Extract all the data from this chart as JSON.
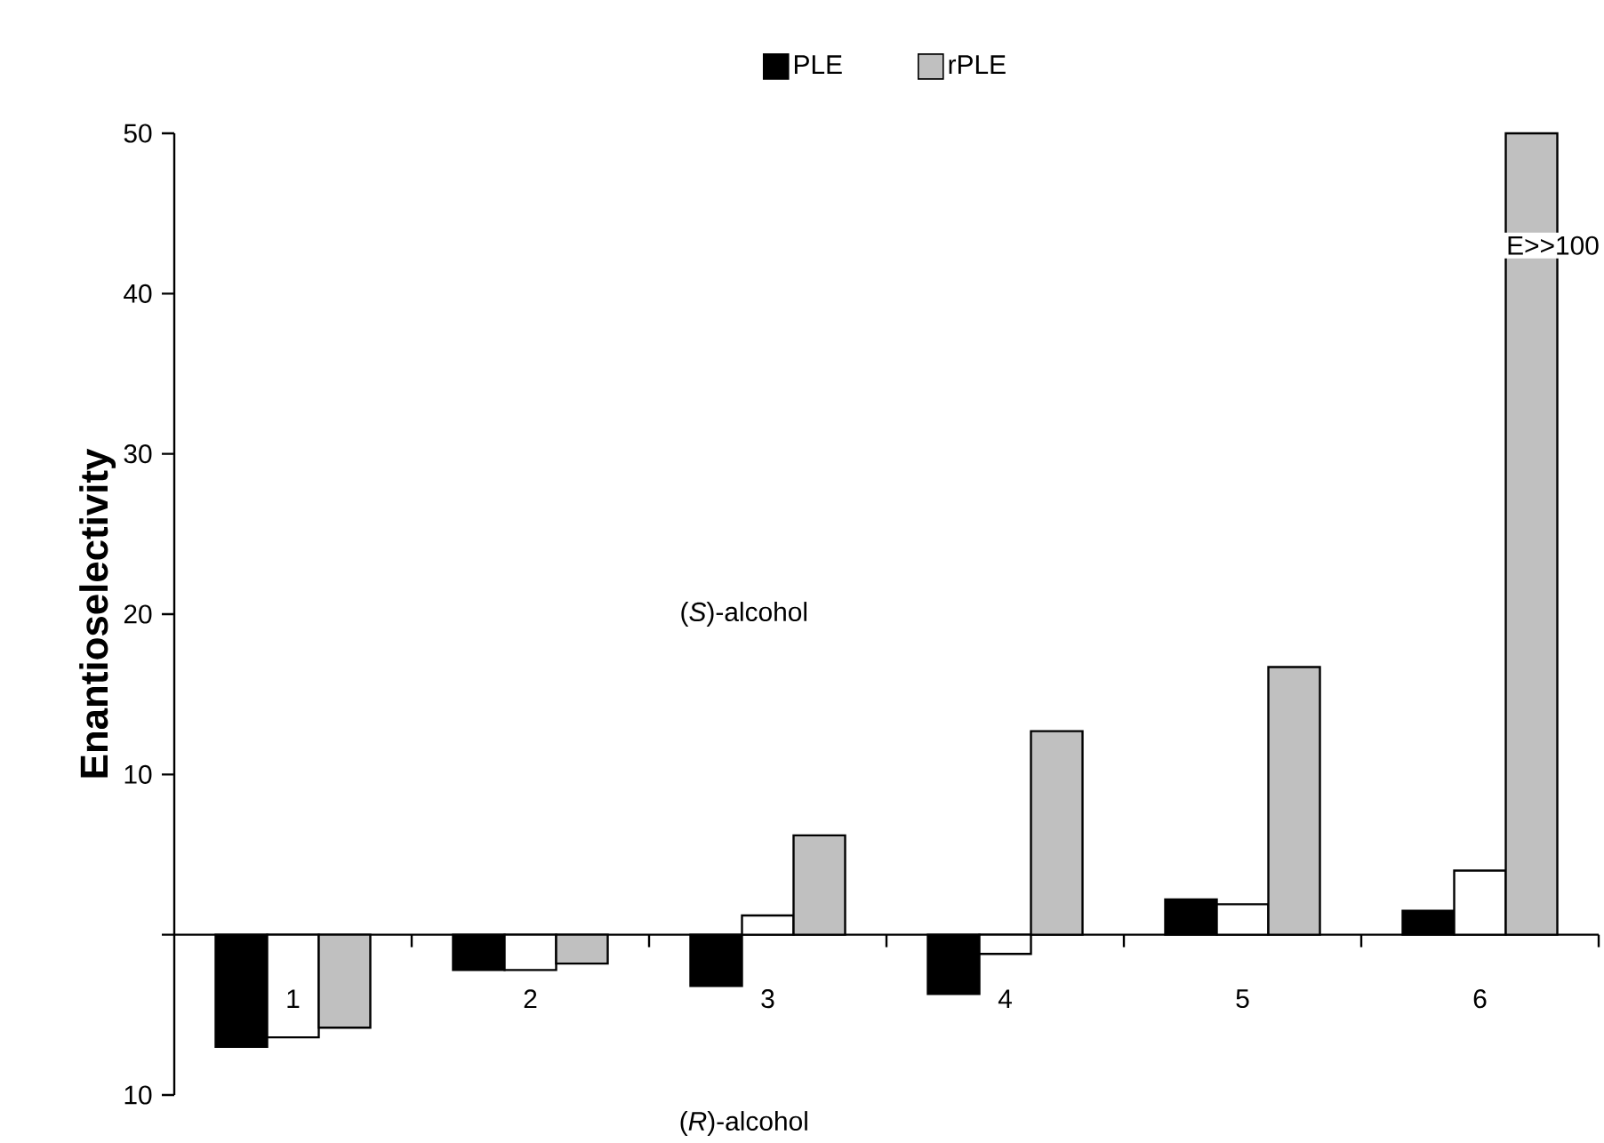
{
  "chart_data": {
    "type": "bar",
    "ylabel": "Enantioselectivity",
    "categories": [
      "1",
      "2",
      "3",
      "4",
      "5",
      "6"
    ],
    "series": [
      {
        "name": "PLE",
        "color": "#000000",
        "values": [
          -7.0,
          -2.2,
          -3.2,
          -3.7,
          2.2,
          1.5
        ]
      },
      {
        "color": "#ffffff",
        "values": [
          -6.4,
          -2.2,
          1.2,
          -1.2,
          1.9,
          4.0
        ]
      },
      {
        "name": "rPLE",
        "color": "#c0c0c0",
        "values": [
          -5.8,
          -1.8,
          6.2,
          12.7,
          16.7,
          50
        ]
      }
    ],
    "ylim": [
      -10,
      50
    ],
    "yticks": [
      {
        "value": -10,
        "label": "10"
      },
      {
        "value": 0,
        "label": null
      },
      10,
      20,
      30,
      40,
      50
    ],
    "legend": "top",
    "grid": false,
    "annotations": [
      "E>>100",
      "(*S*)-alcohol",
      "(*R*)-alcohol"
    ]
  }
}
